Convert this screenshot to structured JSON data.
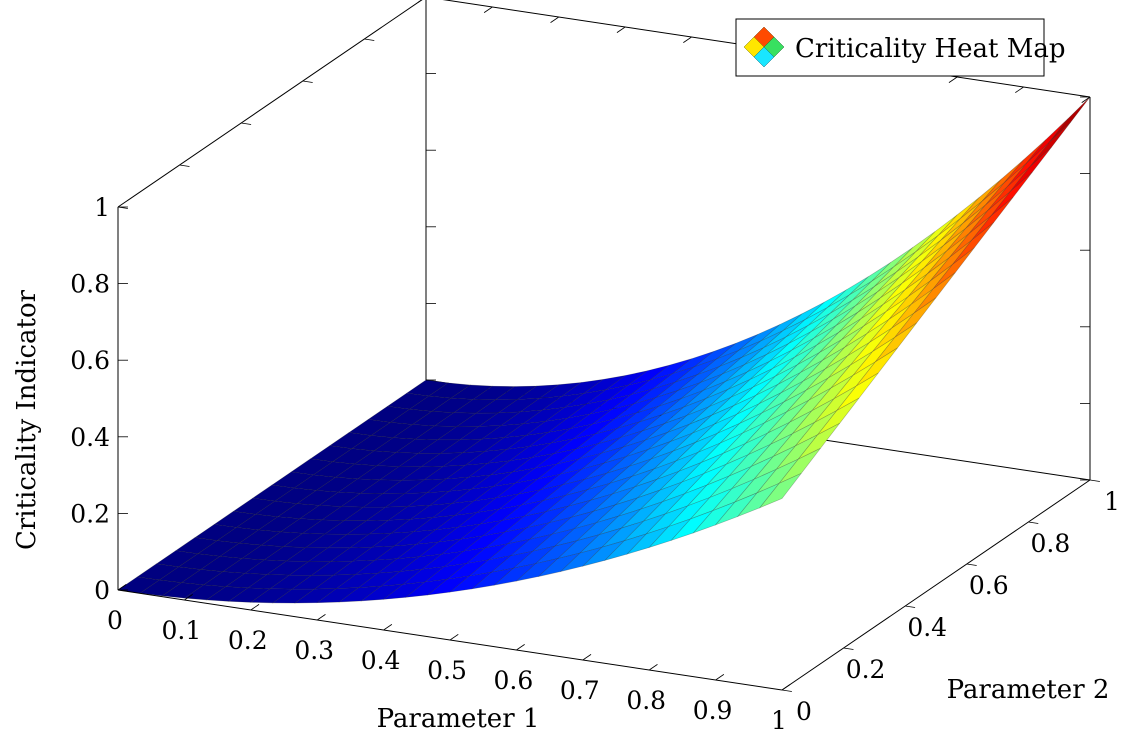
{
  "chart_data": {
    "type": "surface",
    "z_function": "x^2 * (1 + y) / 2",
    "x_samples": 30,
    "y_samples": 16,
    "x_range": [
      0,
      1
    ],
    "y_range": [
      0,
      1
    ],
    "z_range": [
      0,
      1
    ],
    "x_ticks": [
      "0",
      "0.1",
      "0.2",
      "0.3",
      "0.4",
      "0.5",
      "0.6",
      "0.7",
      "0.8",
      "0.9",
      "1"
    ],
    "y_ticks": [
      "0",
      "0.2",
      "0.4",
      "0.6",
      "0.8",
      "1"
    ],
    "z_ticks": [
      "0",
      "0.2",
      "0.4",
      "0.6",
      "0.8",
      "1"
    ],
    "xlabel": "Parameter 1",
    "ylabel": "Parameter 2",
    "zlabel": "Criticality Indicator",
    "colormap": "jet",
    "legend": {
      "label": "Criticality Heat Map",
      "position": "top-right"
    }
  }
}
